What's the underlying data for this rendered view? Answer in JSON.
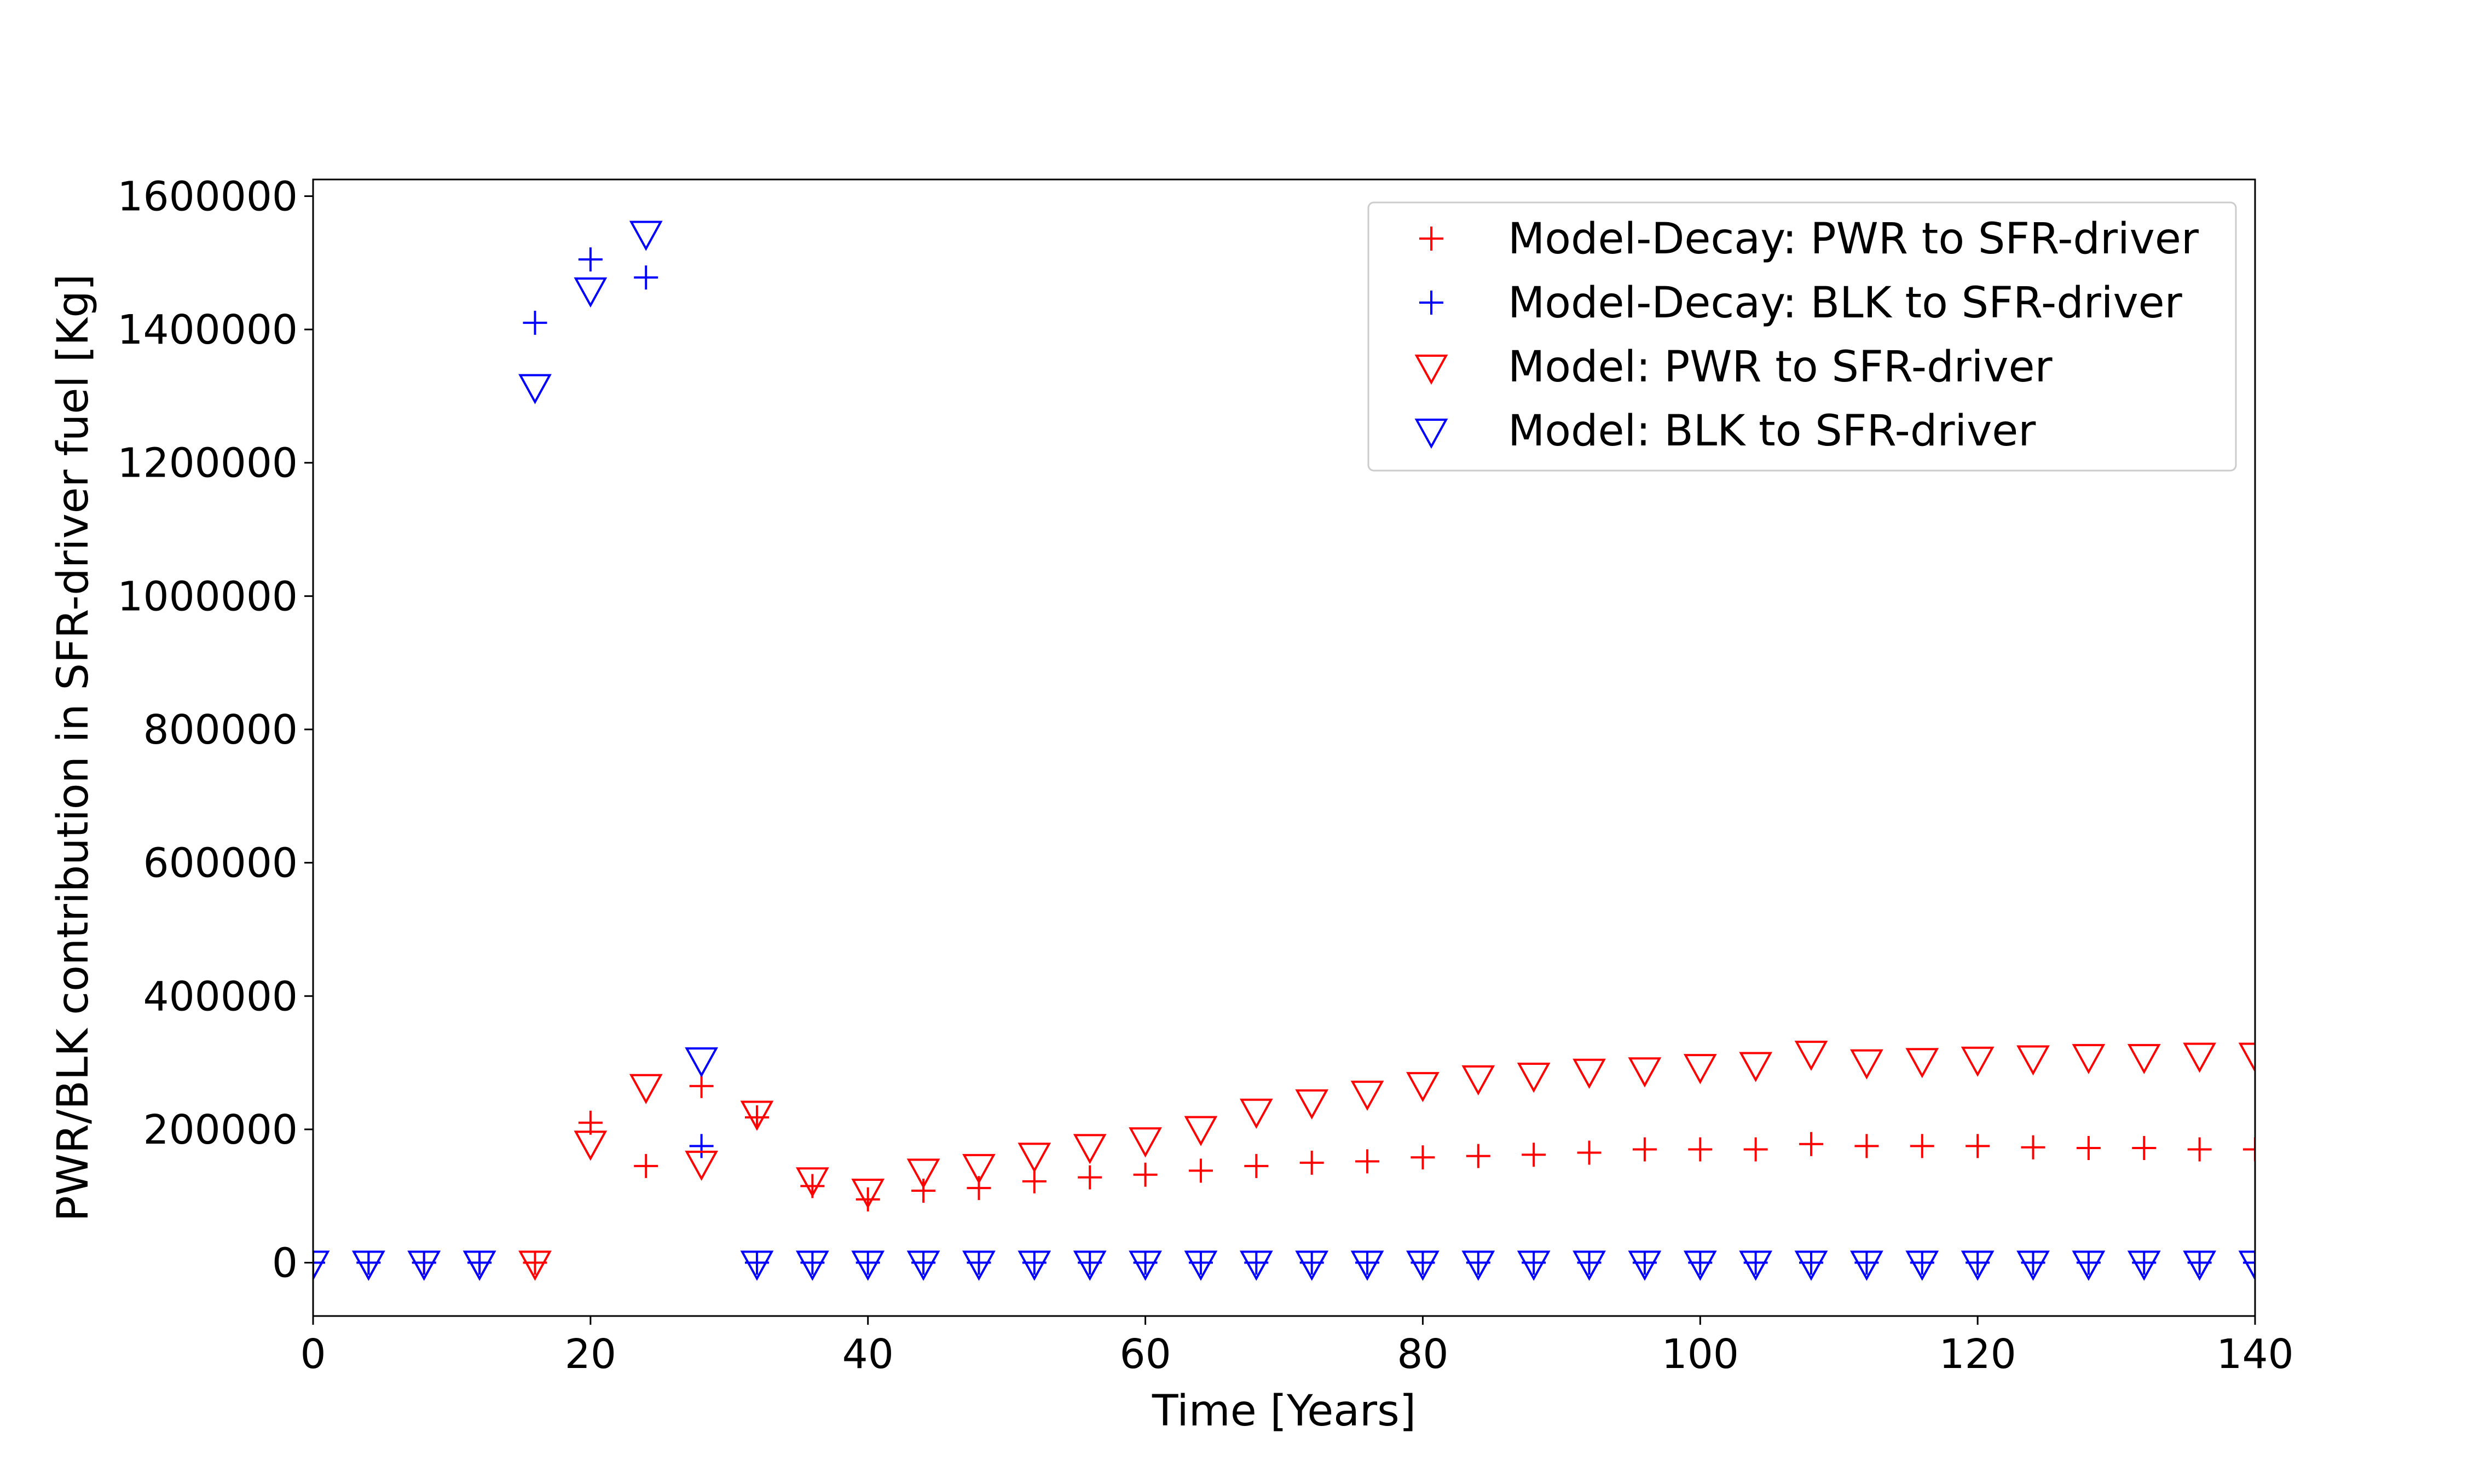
{
  "chart_data": {
    "type": "scatter",
    "title": "",
    "xlabel": "Time [Years]",
    "ylabel": "PWR/BLK contribution in SFR-driver fuel [Kg]",
    "xlim": [
      0,
      140
    ],
    "ylim": [
      -80000,
      1625000
    ],
    "xticks": [
      0,
      20,
      40,
      60,
      80,
      100,
      120,
      140
    ],
    "yticks": [
      0,
      200000,
      400000,
      600000,
      800000,
      1000000,
      1200000,
      1400000,
      1600000
    ],
    "grid": false,
    "legend_position": "top-right",
    "series": [
      {
        "name": "Model-Decay: PWR to SFR-driver",
        "marker": "plus",
        "color": "#ff0000",
        "x": [
          0,
          4,
          8,
          12,
          16,
          20,
          24,
          28,
          32,
          36,
          40,
          44,
          48,
          52,
          56,
          60,
          64,
          68,
          72,
          76,
          80,
          84,
          88,
          92,
          96,
          100,
          104,
          108,
          112,
          116,
          120,
          124,
          128,
          132,
          136,
          140
        ],
        "y": [
          0,
          0,
          0,
          0,
          0,
          210000,
          145000,
          265000,
          218000,
          115000,
          95000,
          108000,
          112000,
          122000,
          128000,
          132000,
          138000,
          145000,
          150000,
          152000,
          158000,
          160000,
          162000,
          165000,
          170000,
          170000,
          170000,
          178000,
          175000,
          175000,
          175000,
          173000,
          172000,
          172000,
          170000,
          170000
        ]
      },
      {
        "name": "Model-Decay: BLK to SFR-driver",
        "marker": "plus",
        "color": "#0000ff",
        "x": [
          0,
          4,
          8,
          12,
          16,
          20,
          24,
          28,
          32,
          36,
          40,
          44,
          48,
          52,
          56,
          60,
          64,
          68,
          72,
          76,
          80,
          84,
          88,
          92,
          96,
          100,
          104,
          108,
          112,
          116,
          120,
          124,
          128,
          132,
          136,
          140
        ],
        "y": [
          0,
          0,
          0,
          0,
          1410000,
          1505000,
          1478000,
          175000,
          0,
          0,
          0,
          0,
          0,
          0,
          0,
          0,
          0,
          0,
          0,
          0,
          0,
          0,
          0,
          0,
          0,
          0,
          0,
          0,
          0,
          0,
          0,
          0,
          0,
          0,
          0,
          0
        ]
      },
      {
        "name": "Model: PWR to SFR-driver",
        "marker": "triangle-down",
        "color": "#ff0000",
        "x": [
          0,
          4,
          8,
          12,
          16,
          20,
          24,
          28,
          32,
          36,
          40,
          44,
          48,
          52,
          56,
          60,
          64,
          68,
          72,
          76,
          80,
          84,
          88,
          92,
          96,
          100,
          104,
          108,
          112,
          116,
          120,
          124,
          128,
          132,
          136,
          140
        ],
        "y": [
          0,
          0,
          0,
          0,
          0,
          180000,
          265000,
          150000,
          225000,
          125000,
          108000,
          138000,
          145000,
          162000,
          175000,
          185000,
          202000,
          228000,
          242000,
          255000,
          268000,
          278000,
          282000,
          288000,
          290000,
          295000,
          298000,
          315000,
          302000,
          304000,
          306000,
          308000,
          310000,
          310000,
          312000,
          312000
        ]
      },
      {
        "name": "Model: BLK to SFR-driver",
        "marker": "triangle-down",
        "color": "#0000ff",
        "x": [
          0,
          4,
          8,
          12,
          16,
          20,
          24,
          28,
          32,
          36,
          40,
          44,
          48,
          52,
          56,
          60,
          64,
          68,
          72,
          76,
          80,
          84,
          88,
          92,
          96,
          100,
          104,
          108,
          112,
          116,
          120,
          124,
          128,
          132,
          136,
          140
        ],
        "y": [
          0,
          0,
          0,
          0,
          1315000,
          1460000,
          1545000,
          305000,
          0,
          0,
          0,
          0,
          0,
          0,
          0,
          0,
          0,
          0,
          0,
          0,
          0,
          0,
          0,
          0,
          0,
          0,
          0,
          0,
          0,
          0,
          0,
          0,
          0,
          0,
          0,
          0
        ]
      }
    ]
  }
}
